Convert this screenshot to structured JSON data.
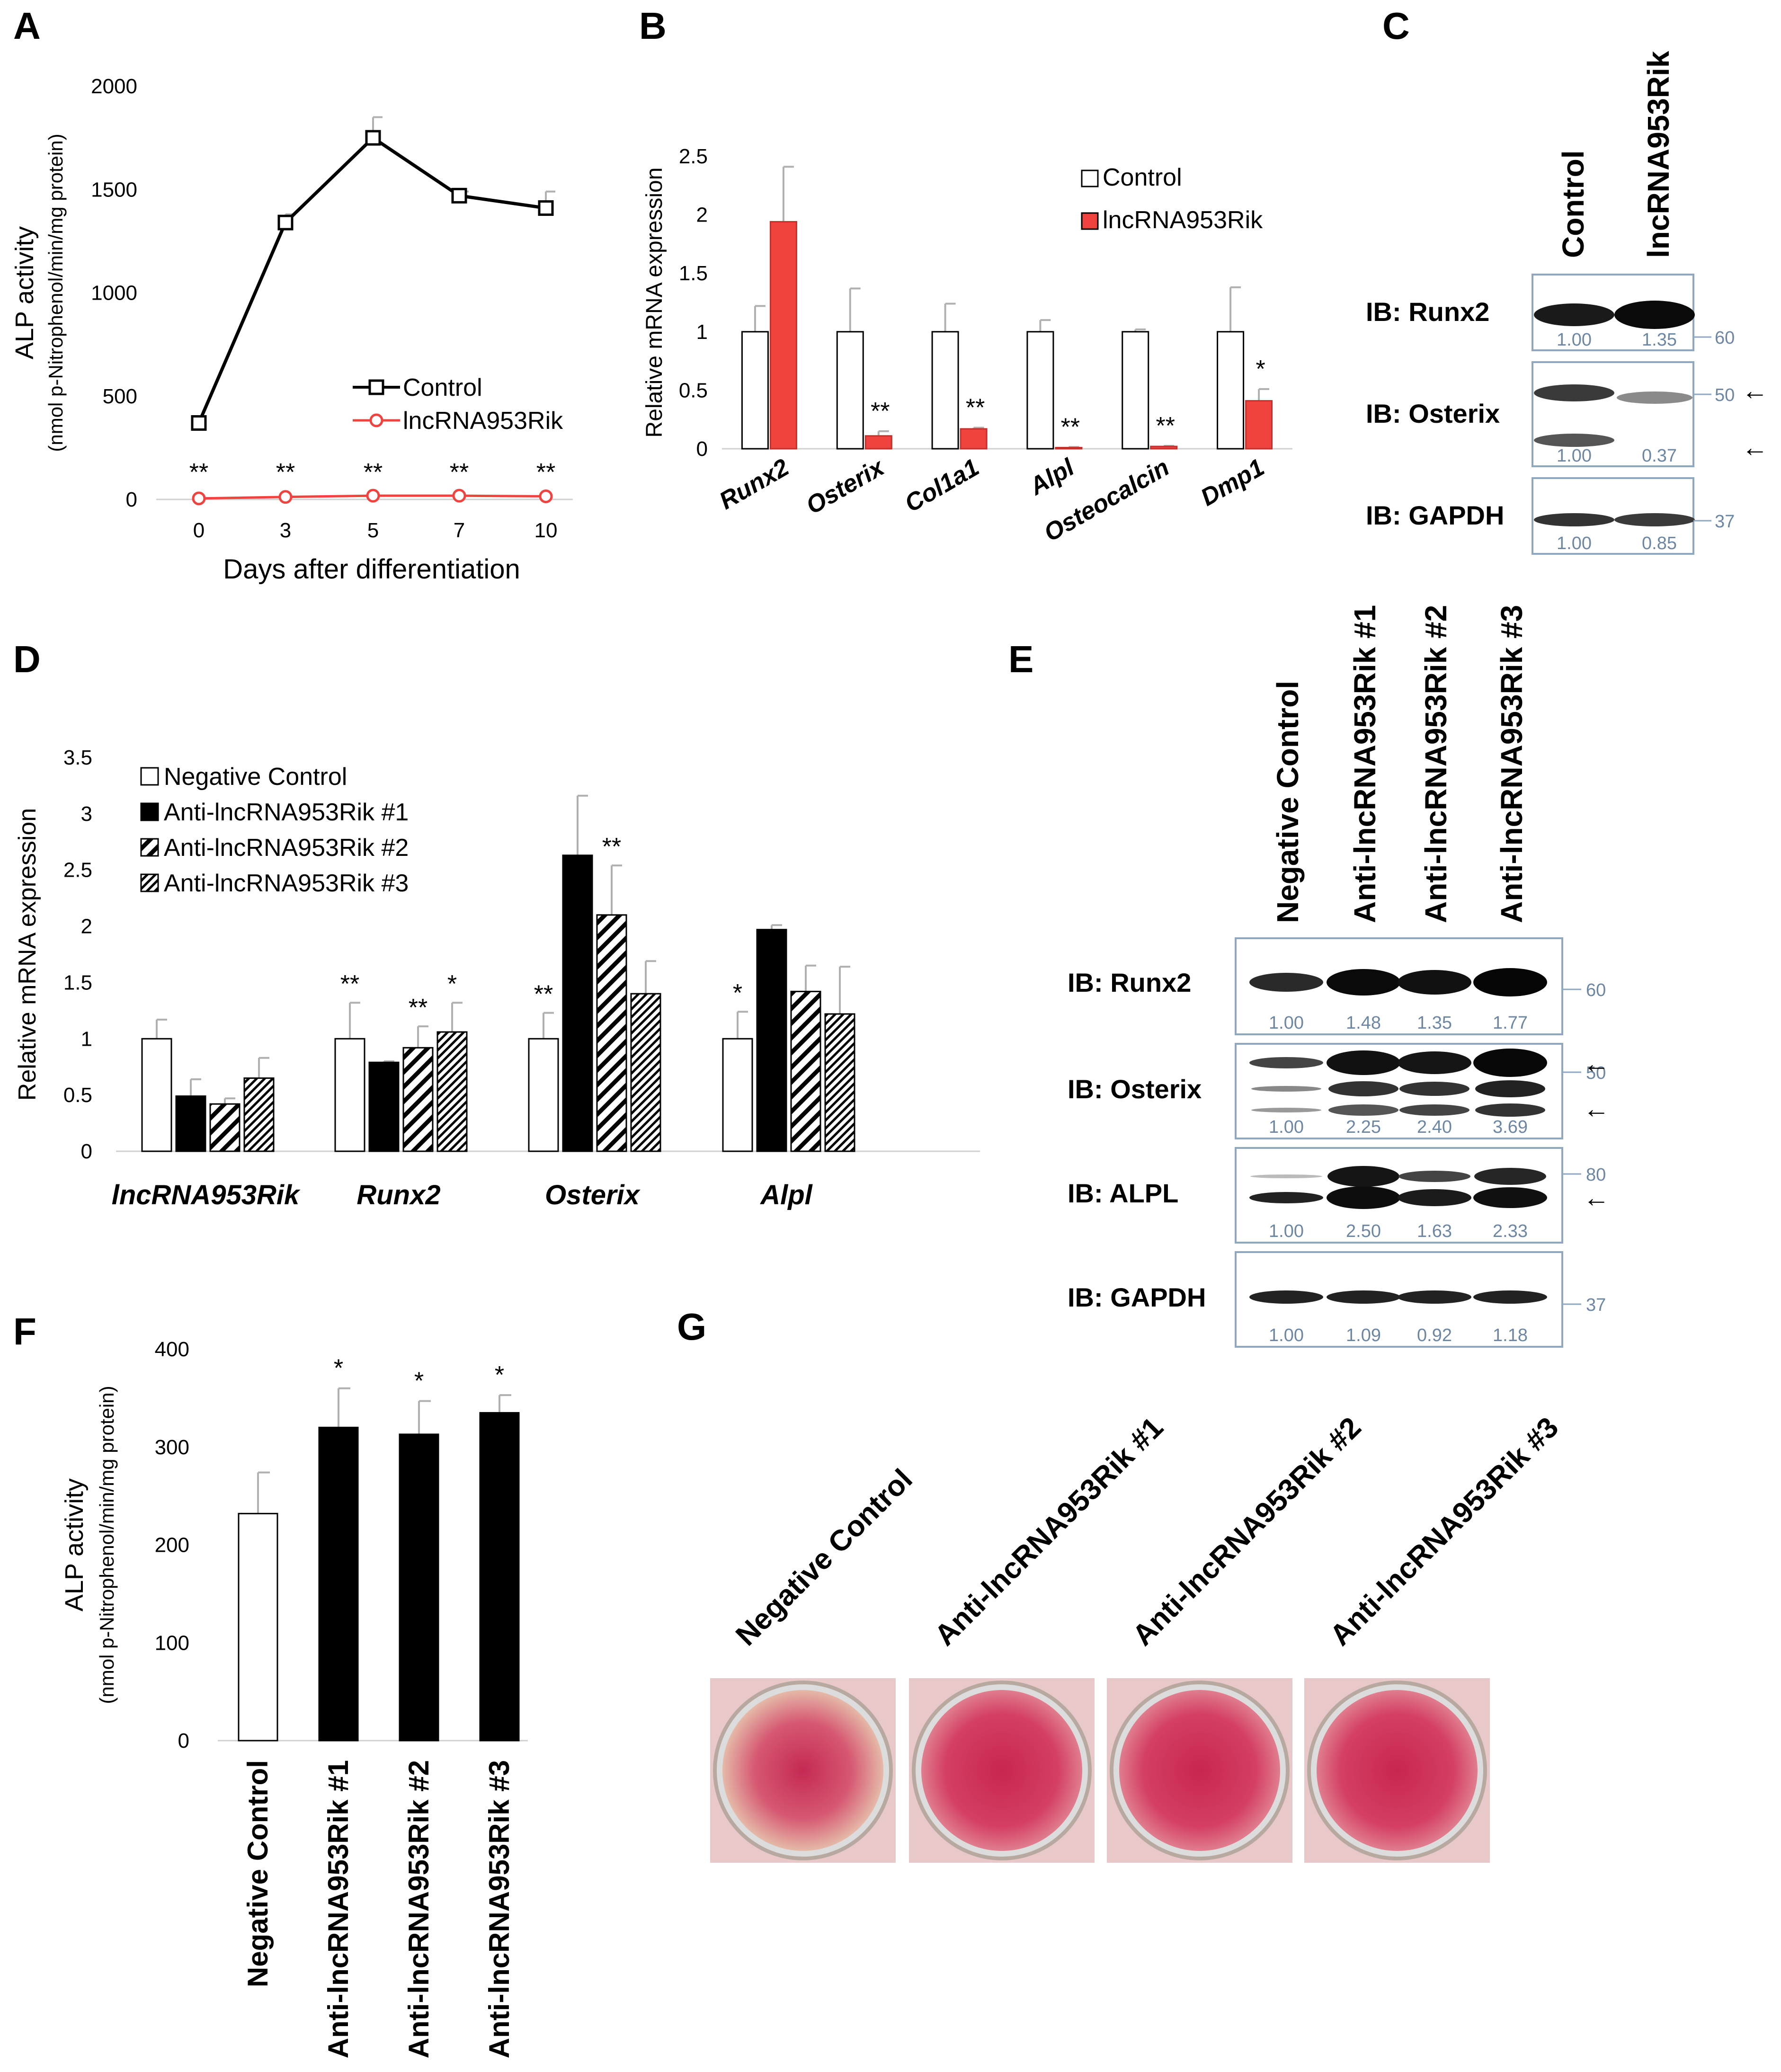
{
  "panels": {
    "A": {
      "letter": "A"
    },
    "B": {
      "letter": "B"
    },
    "C": {
      "letter": "C"
    },
    "D": {
      "letter": "D"
    },
    "E": {
      "letter": "E"
    },
    "F": {
      "letter": "F"
    },
    "G": {
      "letter": "G"
    }
  },
  "colors": {
    "red": "#f0433f",
    "black": "#000000",
    "blot_border": "#8fa8c0",
    "blot_text": "#6d87a3"
  },
  "chart_data": [
    {
      "id": "A",
      "type": "line",
      "x": [
        "0",
        "3",
        "5",
        "7",
        "10"
      ],
      "series": [
        {
          "name": "Control",
          "values": [
            370,
            1340,
            1750,
            1470,
            1410
          ],
          "errors": [
            0,
            40,
            100,
            20,
            80
          ],
          "color": "#000000"
        },
        {
          "name": "lncRNA953Rik",
          "values": [
            5,
            12,
            18,
            18,
            15
          ],
          "errors": [
            0,
            0,
            0,
            0,
            0
          ],
          "color": "#f0433f"
        }
      ],
      "annotations": [
        "**",
        "**",
        "**",
        "**",
        "**"
      ],
      "ylim": [
        0,
        2000
      ],
      "yticks": [
        "0",
        "500",
        "1000",
        "1500",
        "2000"
      ],
      "xlabel": "Days after differentiation",
      "ylabel": "ALP activity",
      "ylabel2": "(nmol p-Nitrophenol/min/mg protein)"
    },
    {
      "id": "B",
      "type": "bar",
      "categories": [
        "Runx2",
        "Osterix",
        "Col1a1",
        "Alpl",
        "Osteocalcin",
        "Dmp1"
      ],
      "series": [
        {
          "name": "Control",
          "values": [
            1.0,
            1.0,
            1.0,
            1.0,
            1.0,
            1.0
          ],
          "errors": [
            0.22,
            0.37,
            0.24,
            0.1,
            0.02,
            0.38
          ]
        },
        {
          "name": "lncRNA953Rik",
          "values": [
            1.94,
            0.11,
            0.17,
            0.01,
            0.02,
            0.41
          ],
          "errors": [
            0.47,
            0.04,
            0.01,
            0.005,
            0.005,
            0.1
          ]
        }
      ],
      "annotations": [
        "",
        "**",
        "**",
        "**",
        "**",
        "*"
      ],
      "ylim": [
        0,
        2.5
      ],
      "yticks": [
        "0",
        "0.5",
        "1",
        "1.5",
        "2",
        "2.5"
      ],
      "ylabel": "Relative mRNA expression"
    },
    {
      "id": "D",
      "type": "bar",
      "categories": [
        "lncRNA953Rik",
        "Runx2",
        "Osterix",
        "Alpl"
      ],
      "series": [
        {
          "name": "Negative Control",
          "values": [
            1.0,
            1.0,
            1.0,
            1.0
          ],
          "errors": [
            0.17,
            0.32,
            0.23,
            0.24
          ]
        },
        {
          "name": "Anti-lncRNA953Rik #1",
          "values": [
            0.49,
            0.79,
            2.63,
            1.97
          ],
          "errors": [
            0.15,
            0.01,
            0.53,
            0.04
          ]
        },
        {
          "name": "Anti-lncRNA953Rik #2",
          "values": [
            0.42,
            0.92,
            2.1,
            1.42
          ],
          "errors": [
            0.05,
            0.19,
            0.44,
            0.23
          ]
        },
        {
          "name": "Anti-lncRNA953Rik #3",
          "values": [
            0.65,
            1.06,
            1.4,
            1.22
          ],
          "errors": [
            0.18,
            0.26,
            0.29,
            0.42
          ]
        }
      ],
      "annotations": [
        [
          "",
          "**",
          "**",
          "*"
        ],
        [
          "",
          "",
          "",
          ""
        ],
        [
          "",
          "**",
          "**",
          ""
        ],
        [
          "",
          "*",
          "",
          ""
        ]
      ],
      "ylim": [
        0,
        3.5
      ],
      "yticks": [
        "0",
        "0.5",
        "1",
        "1.5",
        "2",
        "2.5",
        "3",
        "3.5"
      ],
      "ylabel": "Relative mRNA expression"
    },
    {
      "id": "F",
      "type": "bar",
      "categories": [
        "Negative Control",
        "Anti-lncRNA953Rik #1",
        "Anti-lncRNA953Rik #2",
        "Anti-lncRNA953Rik #3"
      ],
      "values": [
        232,
        320,
        313,
        335
      ],
      "errors": [
        42,
        40,
        34,
        18
      ],
      "annotations": [
        "",
        "*",
        "*",
        "*"
      ],
      "ylim": [
        0,
        400
      ],
      "yticks": [
        "0",
        "100",
        "200",
        "300",
        "400"
      ],
      "ylabel": "ALP activity",
      "ylabel2": "(nmol p-Nitrophenol/min/mg protein)"
    }
  ],
  "blots_C": {
    "lanes": [
      "Control",
      "lncRNA953Rik"
    ],
    "rows": [
      {
        "label": "IB: Runx2",
        "marker": "60",
        "quant": [
          "1.00",
          "1.35"
        ]
      },
      {
        "label": "IB: Osterix",
        "marker": "50",
        "quant": [
          "1.00",
          "0.37"
        ]
      },
      {
        "label": "IB: GAPDH",
        "marker": "37",
        "quant": [
          "1.00",
          "0.85"
        ]
      }
    ]
  },
  "blots_E": {
    "lanes": [
      "Negative Control",
      "Anti-lncRNA953Rik #1",
      "Anti-lncRNA953Rik #2",
      "Anti-lncRNA953Rik #3"
    ],
    "rows": [
      {
        "label": "IB: Runx2",
        "marker": "60",
        "quant": [
          "1.00",
          "1.48",
          "1.35",
          "1.77"
        ]
      },
      {
        "label": "IB: Osterix",
        "marker": "50",
        "quant": [
          "1.00",
          "2.25",
          "2.40",
          "3.69"
        ]
      },
      {
        "label": "IB: ALPL",
        "marker": "80",
        "quant": [
          "1.00",
          "2.50",
          "1.63",
          "2.33"
        ]
      },
      {
        "label": "IB: GAPDH",
        "marker": "37",
        "quant": [
          "1.00",
          "1.09",
          "0.92",
          "1.18"
        ]
      }
    ]
  },
  "staining_G": {
    "labels": [
      "Negative Control",
      "Anti-lncRNA953Rik #1",
      "Anti-lncRNA953Rik #2",
      "Anti-lncRNA953Rik #3"
    ]
  }
}
